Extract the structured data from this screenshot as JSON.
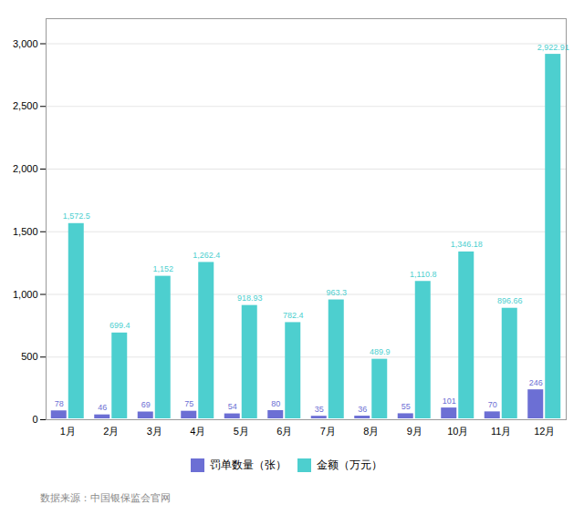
{
  "chart_data": {
    "type": "bar",
    "categories": [
      "1月",
      "2月",
      "3月",
      "4月",
      "5月",
      "6月",
      "7月",
      "8月",
      "9月",
      "10月",
      "11月",
      "12月"
    ],
    "series": [
      {
        "name": "罚单数量（张）",
        "color": "#6c6fd4",
        "values": [
          78,
          46,
          69,
          75,
          54,
          80,
          35,
          36,
          55,
          101,
          70,
          246
        ]
      },
      {
        "name": "金额（万元）",
        "color": "#4dcfcf",
        "values": [
          1572.5,
          699.4,
          1152,
          1262.4,
          918.93,
          782.4,
          963.3,
          489.9,
          1110.8,
          1346.18,
          896.66,
          2922.91
        ],
        "value_labels": [
          "1,572.5",
          "699.4",
          "1,152",
          "1,262.4",
          "918.93",
          "782.4",
          "963.3",
          "489.9",
          "1,110.8",
          "1,346.18",
          "896.66",
          "2,922.91"
        ]
      }
    ],
    "ylim": [
      0,
      3200
    ],
    "yticks": [
      0,
      500,
      {
        "value": 1000,
        "label": "1,000"
      },
      {
        "value": 1500,
        "label": "1,500"
      },
      {
        "value": 2000,
        "label": "2,000"
      },
      {
        "value": 2500,
        "label": "2,500"
      },
      {
        "value": 3000,
        "label": "3,000"
      }
    ],
    "grid": true,
    "legend": "bottom",
    "data_labels": true,
    "caption": "数据来源：中国银保监会官网"
  }
}
